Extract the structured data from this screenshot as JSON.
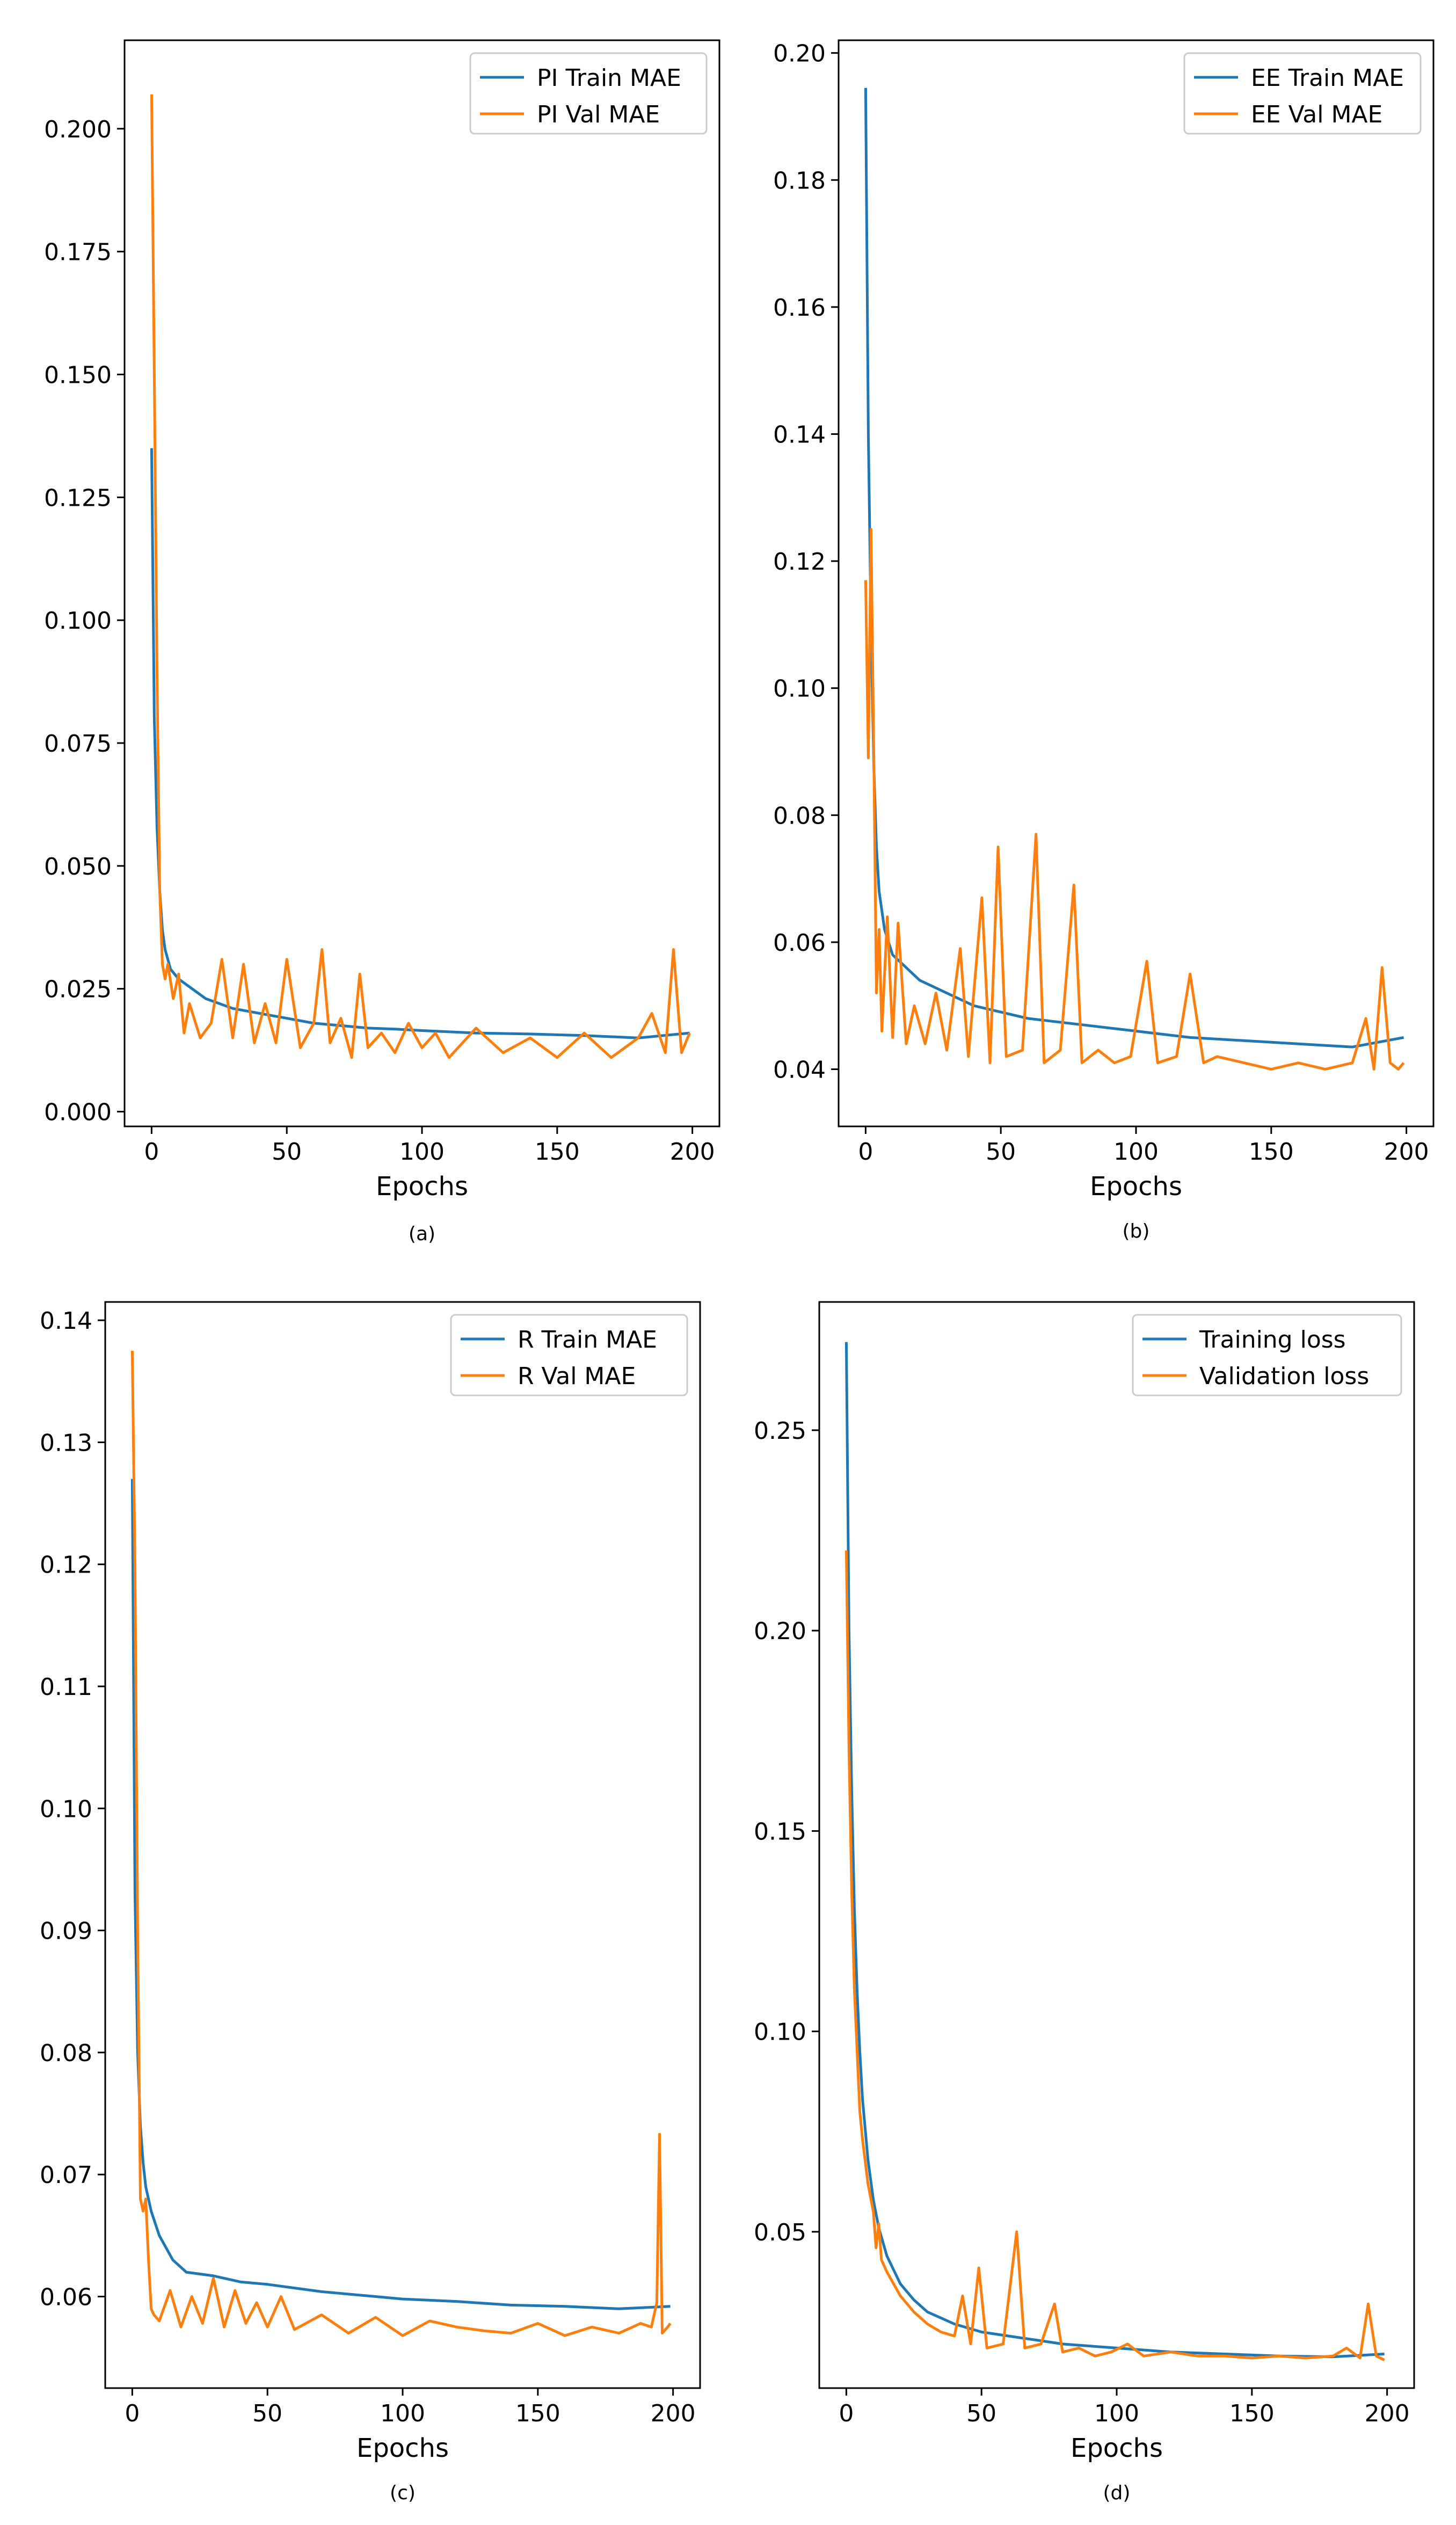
{
  "chart_data": [
    {
      "type": "line",
      "caption": "(a)",
      "xlabel": "Epochs",
      "ylabel": "",
      "xlim": [
        -10,
        210
      ],
      "ylim": [
        -0.003,
        0.218
      ],
      "xticks": [
        "0",
        "50",
        "100",
        "150",
        "200"
      ],
      "yticks": [
        "0.000",
        "0.025",
        "0.050",
        "0.075",
        "0.100",
        "0.125",
        "0.150",
        "0.175",
        "0.200"
      ],
      "legend_position": "top-right",
      "colors": [
        "#1f77b4",
        "#ff7f0e"
      ],
      "series": [
        {
          "name": "PI Train MAE",
          "x": [
            0,
            1,
            2,
            3,
            4,
            5,
            7,
            10,
            15,
            20,
            30,
            40,
            50,
            60,
            70,
            80,
            90,
            100,
            120,
            140,
            160,
            180,
            199
          ],
          "values": [
            0.135,
            0.08,
            0.058,
            0.045,
            0.037,
            0.033,
            0.029,
            0.027,
            0.025,
            0.023,
            0.021,
            0.02,
            0.019,
            0.018,
            0.0175,
            0.017,
            0.0168,
            0.0165,
            0.016,
            0.0158,
            0.0155,
            0.015,
            0.016
          ]
        },
        {
          "name": "PI Val MAE",
          "x": [
            0,
            1,
            2,
            3,
            4,
            5,
            6,
            8,
            10,
            12,
            14,
            18,
            22,
            26,
            30,
            34,
            38,
            42,
            46,
            50,
            55,
            60,
            63,
            66,
            70,
            74,
            77,
            80,
            85,
            90,
            95,
            100,
            105,
            110,
            120,
            130,
            140,
            150,
            160,
            170,
            180,
            185,
            190,
            193,
            196,
            199
          ],
          "values": [
            0.207,
            0.15,
            0.09,
            0.045,
            0.03,
            0.027,
            0.03,
            0.023,
            0.028,
            0.016,
            0.022,
            0.015,
            0.018,
            0.031,
            0.015,
            0.03,
            0.014,
            0.022,
            0.014,
            0.031,
            0.013,
            0.018,
            0.033,
            0.014,
            0.019,
            0.011,
            0.028,
            0.013,
            0.016,
            0.012,
            0.018,
            0.013,
            0.016,
            0.011,
            0.017,
            0.012,
            0.015,
            0.011,
            0.016,
            0.011,
            0.015,
            0.02,
            0.012,
            0.033,
            0.012,
            0.016
          ]
        }
      ]
    },
    {
      "type": "line",
      "caption": "(b)",
      "xlabel": "Epochs",
      "ylabel": "",
      "xlim": [
        -10,
        210
      ],
      "ylim": [
        0.031,
        0.202
      ],
      "xticks": [
        "0",
        "50",
        "100",
        "150",
        "200"
      ],
      "yticks": [
        "0.04",
        "0.06",
        "0.08",
        "0.10",
        "0.12",
        "0.14",
        "0.16",
        "0.18",
        "0.20"
      ],
      "legend_position": "top-right",
      "colors": [
        "#1f77b4",
        "#ff7f0e"
      ],
      "series": [
        {
          "name": "EE Train MAE",
          "x": [
            0,
            1,
            2,
            3,
            4,
            5,
            7,
            10,
            15,
            20,
            30,
            40,
            50,
            60,
            70,
            80,
            90,
            100,
            120,
            140,
            160,
            180,
            199
          ],
          "values": [
            0.1945,
            0.14,
            0.11,
            0.088,
            0.075,
            0.068,
            0.062,
            0.058,
            0.056,
            0.054,
            0.052,
            0.05,
            0.049,
            0.048,
            0.0475,
            0.047,
            0.0465,
            0.046,
            0.045,
            0.0445,
            0.044,
            0.0435,
            0.045
          ]
        },
        {
          "name": "EE Val MAE",
          "x": [
            0,
            1,
            2,
            3,
            4,
            5,
            6,
            8,
            10,
            12,
            15,
            18,
            22,
            26,
            30,
            35,
            38,
            43,
            46,
            49,
            52,
            58,
            63,
            66,
            72,
            77,
            80,
            86,
            92,
            98,
            104,
            108,
            115,
            120,
            125,
            130,
            140,
            150,
            160,
            170,
            180,
            185,
            188,
            191,
            194,
            197,
            199
          ],
          "values": [
            0.117,
            0.089,
            0.125,
            0.09,
            0.052,
            0.062,
            0.046,
            0.064,
            0.045,
            0.063,
            0.044,
            0.05,
            0.044,
            0.052,
            0.043,
            0.059,
            0.042,
            0.067,
            0.041,
            0.075,
            0.042,
            0.043,
            0.077,
            0.041,
            0.043,
            0.069,
            0.041,
            0.043,
            0.041,
            0.042,
            0.057,
            0.041,
            0.042,
            0.055,
            0.041,
            0.042,
            0.041,
            0.04,
            0.041,
            0.04,
            0.041,
            0.048,
            0.04,
            0.056,
            0.041,
            0.04,
            0.041
          ]
        }
      ]
    },
    {
      "type": "line",
      "caption": "(c)",
      "xlabel": "Epochs",
      "ylabel": "",
      "xlim": [
        -10,
        210
      ],
      "ylim": [
        0.0525,
        0.1415
      ],
      "xticks": [
        "0",
        "50",
        "100",
        "150",
        "200"
      ],
      "yticks": [
        "0.06",
        "0.07",
        "0.08",
        "0.09",
        "0.10",
        "0.11",
        "0.12",
        "0.13",
        "0.14"
      ],
      "legend_position": "top-right",
      "colors": [
        "#1f77b4",
        "#ff7f0e"
      ],
      "series": [
        {
          "name": "R Train MAE",
          "x": [
            0,
            1,
            2,
            3,
            4,
            5,
            7,
            10,
            15,
            20,
            30,
            40,
            50,
            60,
            70,
            80,
            90,
            100,
            120,
            140,
            160,
            180,
            199
          ],
          "values": [
            0.127,
            0.093,
            0.08,
            0.074,
            0.071,
            0.069,
            0.067,
            0.065,
            0.063,
            0.062,
            0.0617,
            0.0612,
            0.061,
            0.0607,
            0.0604,
            0.0602,
            0.06,
            0.0598,
            0.0596,
            0.0593,
            0.0592,
            0.059,
            0.0592
          ]
        },
        {
          "name": "R Val MAE",
          "x": [
            0,
            1,
            2,
            3,
            4,
            5,
            6,
            7,
            8,
            10,
            14,
            18,
            22,
            26,
            30,
            34,
            38,
            42,
            46,
            50,
            55,
            60,
            70,
            80,
            90,
            100,
            110,
            120,
            130,
            140,
            150,
            160,
            170,
            180,
            188,
            192,
            194,
            195,
            196,
            198,
            199
          ],
          "values": [
            0.1375,
            0.12,
            0.09,
            0.068,
            0.067,
            0.068,
            0.063,
            0.059,
            0.0585,
            0.058,
            0.0605,
            0.0575,
            0.06,
            0.0578,
            0.0615,
            0.0575,
            0.0605,
            0.0578,
            0.0595,
            0.0575,
            0.06,
            0.0573,
            0.0585,
            0.057,
            0.0583,
            0.0568,
            0.058,
            0.0575,
            0.0572,
            0.057,
            0.0578,
            0.0568,
            0.0575,
            0.057,
            0.0578,
            0.0575,
            0.0595,
            0.0733,
            0.057,
            0.0575,
            0.0578
          ]
        }
      ]
    },
    {
      "type": "line",
      "caption": "(d)",
      "xlabel": "Epochs",
      "ylabel": "",
      "xlim": [
        -10,
        210
      ],
      "ylim": [
        0.011,
        0.282
      ],
      "xticks": [
        "0",
        "50",
        "100",
        "150",
        "200"
      ],
      "yticks": [
        "0.05",
        "0.10",
        "0.15",
        "0.20",
        "0.25"
      ],
      "legend_position": "top-right",
      "colors": [
        "#1f77b4",
        "#ff7f0e"
      ],
      "series": [
        {
          "name": "Training loss",
          "x": [
            0,
            1,
            2,
            3,
            4,
            5,
            6,
            8,
            10,
            12,
            15,
            20,
            25,
            30,
            40,
            50,
            60,
            70,
            80,
            100,
            120,
            140,
            160,
            180,
            199
          ],
          "values": [
            0.272,
            0.2,
            0.16,
            0.13,
            0.11,
            0.095,
            0.083,
            0.068,
            0.058,
            0.051,
            0.044,
            0.037,
            0.033,
            0.03,
            0.027,
            0.025,
            0.024,
            0.023,
            0.022,
            0.021,
            0.02,
            0.0195,
            0.019,
            0.0188,
            0.0195
          ]
        },
        {
          "name": "Validation loss",
          "x": [
            0,
            1,
            2,
            3,
            4,
            5,
            6,
            8,
            10,
            11,
            12,
            13,
            15,
            20,
            25,
            30,
            35,
            40,
            43,
            46,
            49,
            52,
            58,
            63,
            66,
            72,
            77,
            80,
            86,
            92,
            98,
            104,
            110,
            120,
            130,
            140,
            150,
            160,
            170,
            180,
            185,
            190,
            193,
            196,
            199
          ],
          "values": [
            0.22,
            0.17,
            0.135,
            0.11,
            0.095,
            0.08,
            0.073,
            0.062,
            0.055,
            0.046,
            0.052,
            0.043,
            0.04,
            0.034,
            0.03,
            0.027,
            0.025,
            0.024,
            0.034,
            0.022,
            0.041,
            0.021,
            0.022,
            0.05,
            0.021,
            0.022,
            0.032,
            0.02,
            0.021,
            0.019,
            0.02,
            0.022,
            0.019,
            0.02,
            0.019,
            0.019,
            0.0185,
            0.019,
            0.0185,
            0.019,
            0.021,
            0.0185,
            0.032,
            0.019,
            0.018
          ]
        }
      ]
    }
  ]
}
